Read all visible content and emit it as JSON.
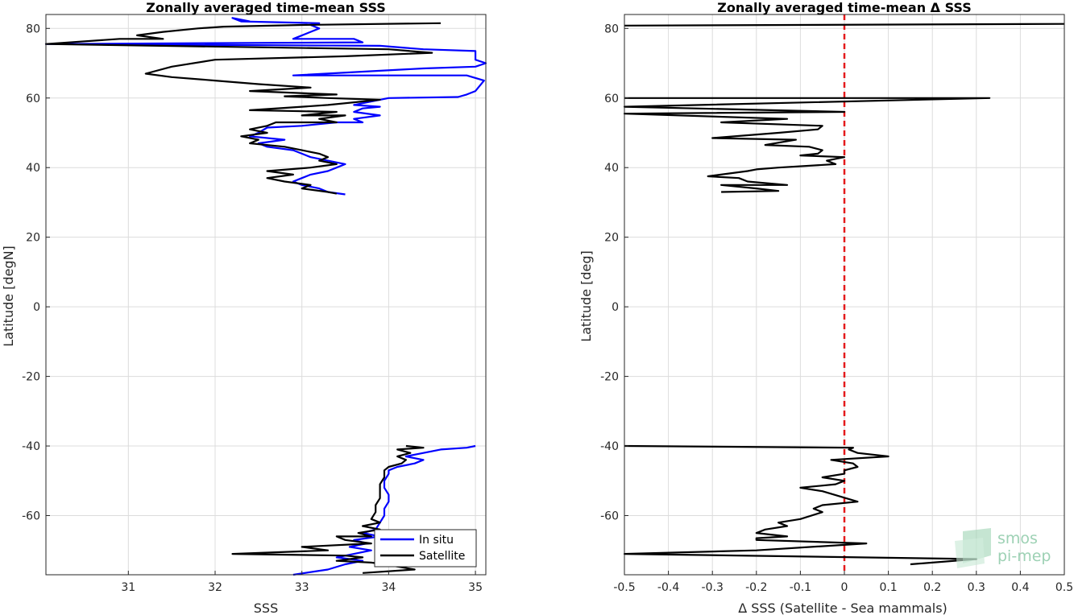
{
  "chart_data": [
    {
      "type": "line",
      "title": "Zonally averaged time-mean SSS",
      "xlabel": "SSS",
      "ylabel": "Latitude [degN]",
      "xlim": [
        30.05,
        35.12
      ],
      "ylim": [
        -77,
        84
      ],
      "xticks": [
        31,
        32,
        33,
        34,
        35
      ],
      "yticks": [
        -60,
        -40,
        -20,
        0,
        20,
        40,
        60,
        80
      ],
      "grid": true,
      "legend_position": "bottom-right",
      "series": [
        {
          "name": "In situ",
          "color": "#0000ff",
          "segments": [
            [
              [
                32.4,
                82
              ],
              [
                32.2,
                83
              ],
              [
                32.3,
                82
              ],
              [
                33.2,
                81.5
              ],
              [
                33.1,
                81
              ],
              [
                33.2,
                80
              ],
              [
                33.1,
                79
              ],
              [
                32.9,
                77
              ],
              [
                33.6,
                77
              ],
              [
                33.7,
                76
              ],
              [
                30.05,
                75.5
              ],
              [
                33.9,
                75
              ],
              [
                34.4,
                74
              ],
              [
                35.0,
                73.5
              ],
              [
                35.0,
                71
              ],
              [
                35.12,
                70
              ],
              [
                35.0,
                69
              ],
              [
                34.4,
                68.5
              ],
              [
                32.9,
                66.5
              ],
              [
                34.9,
                66.5
              ],
              [
                35.1,
                65
              ],
              [
                35.0,
                62
              ],
              [
                34.9,
                61
              ],
              [
                34.8,
                60.3
              ],
              [
                34.0,
                60
              ],
              [
                33.8,
                59
              ],
              [
                33.6,
                58
              ],
              [
                33.9,
                57.5
              ],
              [
                33.7,
                57
              ],
              [
                33.6,
                56
              ],
              [
                33.9,
                55
              ],
              [
                33.6,
                54
              ],
              [
                33.7,
                53
              ],
              [
                33.4,
                53
              ],
              [
                33.0,
                52
              ],
              [
                32.6,
                51.5
              ],
              [
                32.5,
                50
              ],
              [
                32.4,
                49
              ],
              [
                32.8,
                48
              ],
              [
                32.5,
                47
              ],
              [
                32.6,
                46
              ],
              [
                32.9,
                45
              ],
              [
                33.0,
                44
              ],
              [
                33.1,
                43
              ],
              [
                33.3,
                42
              ],
              [
                33.5,
                41
              ],
              [
                33.4,
                40
              ],
              [
                33.3,
                39
              ],
              [
                33.1,
                38
              ],
              [
                33.0,
                37
              ],
              [
                32.9,
                36
              ],
              [
                33.0,
                35
              ],
              [
                33.2,
                34
              ],
              [
                33.3,
                33
              ],
              [
                33.5,
                32.3
              ]
            ],
            [
              [
                35.0,
                -40
              ],
              [
                34.9,
                -40.5
              ],
              [
                34.6,
                -41
              ],
              [
                34.4,
                -42
              ],
              [
                34.2,
                -43
              ],
              [
                34.4,
                -44
              ],
              [
                34.3,
                -45
              ],
              [
                34.1,
                -46
              ],
              [
                34.0,
                -47
              ],
              [
                34.0,
                -48
              ],
              [
                33.95,
                -50
              ],
              [
                33.95,
                -52
              ],
              [
                34.0,
                -54
              ],
              [
                34.0,
                -56
              ],
              [
                33.95,
                -58
              ],
              [
                33.95,
                -60
              ],
              [
                33.9,
                -62
              ],
              [
                33.85,
                -64
              ],
              [
                33.7,
                -65
              ],
              [
                33.9,
                -66
              ],
              [
                33.6,
                -67
              ],
              [
                33.75,
                -68
              ],
              [
                33.55,
                -69
              ],
              [
                33.8,
                -70
              ],
              [
                33.6,
                -71
              ],
              [
                33.4,
                -72
              ],
              [
                33.7,
                -73
              ],
              [
                33.5,
                -74
              ],
              [
                33.3,
                -75.5
              ],
              [
                32.9,
                -77
              ]
            ]
          ]
        },
        {
          "name": "Satellite",
          "color": "#000000",
          "segments": [
            [
              [
                34.6,
                81.5
              ],
              [
                33.0,
                81
              ],
              [
                32.1,
                80.5
              ],
              [
                31.8,
                80
              ],
              [
                31.4,
                79
              ],
              [
                31.1,
                78
              ],
              [
                31.4,
                77
              ],
              [
                30.9,
                77
              ],
              [
                30.05,
                75.5
              ],
              [
                34.0,
                74
              ],
              [
                34.5,
                73
              ],
              [
                33.5,
                72
              ],
              [
                32.0,
                71
              ],
              [
                31.5,
                69
              ],
              [
                31.2,
                67
              ],
              [
                31.5,
                66
              ],
              [
                32.0,
                65
              ],
              [
                32.5,
                64
              ],
              [
                33.1,
                63
              ],
              [
                32.4,
                62
              ],
              [
                33.4,
                61
              ],
              [
                32.8,
                60.5
              ],
              [
                33.3,
                60
              ],
              [
                33.9,
                59.5
              ],
              [
                33.3,
                58
              ],
              [
                33.0,
                57.5
              ],
              [
                32.4,
                56.5
              ],
              [
                33.4,
                56
              ],
              [
                33.0,
                55
              ],
              [
                33.5,
                55
              ],
              [
                33.2,
                54
              ],
              [
                33.4,
                53
              ],
              [
                32.7,
                53
              ],
              [
                32.6,
                52
              ],
              [
                32.4,
                51
              ],
              [
                32.6,
                50
              ],
              [
                32.3,
                49
              ],
              [
                32.5,
                48
              ],
              [
                32.4,
                47
              ],
              [
                32.8,
                46
              ],
              [
                33.0,
                45
              ],
              [
                33.2,
                44
              ],
              [
                33.3,
                43
              ],
              [
                33.2,
                42
              ],
              [
                33.4,
                41
              ],
              [
                33.1,
                40
              ],
              [
                32.6,
                39
              ],
              [
                32.9,
                38
              ],
              [
                32.6,
                37
              ],
              [
                32.8,
                36
              ],
              [
                33.1,
                35
              ],
              [
                33.0,
                34
              ],
              [
                33.3,
                33
              ],
              [
                33.4,
                32.5
              ]
            ],
            [
              [
                34.2,
                -40
              ],
              [
                34.4,
                -40.5
              ],
              [
                34.1,
                -41
              ],
              [
                34.25,
                -42
              ],
              [
                34.1,
                -43
              ],
              [
                34.2,
                -44
              ],
              [
                34.15,
                -45
              ],
              [
                34.0,
                -46
              ],
              [
                33.95,
                -47
              ],
              [
                33.95,
                -49
              ],
              [
                33.9,
                -51
              ],
              [
                33.9,
                -53
              ],
              [
                33.9,
                -55
              ],
              [
                33.85,
                -57
              ],
              [
                33.85,
                -59
              ],
              [
                33.8,
                -61
              ],
              [
                33.9,
                -62
              ],
              [
                33.7,
                -63
              ],
              [
                33.9,
                -64
              ],
              [
                33.65,
                -65
              ],
              [
                33.8,
                -66
              ],
              [
                33.4,
                -66
              ],
              [
                33.5,
                -67
              ],
              [
                33.8,
                -68
              ],
              [
                33.0,
                -69
              ],
              [
                33.3,
                -70
              ],
              [
                32.2,
                -71
              ],
              [
                33.5,
                -71.5
              ],
              [
                33.7,
                -72
              ],
              [
                33.4,
                -73
              ],
              [
                33.8,
                -73.5
              ],
              [
                33.95,
                -74
              ],
              [
                34.3,
                -75.5
              ],
              [
                33.7,
                -76.5
              ]
            ]
          ]
        }
      ]
    },
    {
      "type": "line",
      "title": "Zonally averaged time-mean Δ SSS",
      "xlabel": "Δ SSS (Satellite - Sea mammals)",
      "ylabel": "Latitude [deg]",
      "xlim": [
        -0.5,
        0.5
      ],
      "ylim": [
        -77,
        84
      ],
      "xticks": [
        -0.5,
        -0.4,
        -0.3,
        -0.2,
        -0.1,
        0,
        0.1,
        0.2,
        0.3,
        0.4,
        0.5
      ],
      "yticks": [
        -60,
        -40,
        -20,
        0,
        20,
        40,
        60,
        80
      ],
      "grid": true,
      "reference_line": {
        "x": 0,
        "color": "#e41a1c",
        "style": "dashed"
      },
      "series": [
        {
          "color": "#000000",
          "segments": [
            [
              [
                -0.5,
                80.8
              ],
              [
                0.5,
                81.3
              ]
            ],
            [
              [
                -0.5,
                60
              ],
              [
                0.33,
                60
              ],
              [
                -0.5,
                57.5
              ],
              [
                0.0,
                56
              ],
              [
                -0.5,
                55.5
              ],
              [
                -0.13,
                54
              ],
              [
                -0.28,
                53
              ],
              [
                -0.05,
                52
              ],
              [
                -0.06,
                51
              ],
              [
                -0.15,
                50
              ],
              [
                -0.3,
                48.5
              ],
              [
                -0.11,
                48
              ],
              [
                -0.18,
                46.5
              ],
              [
                -0.08,
                46
              ],
              [
                -0.05,
                45
              ],
              [
                -0.06,
                44
              ],
              [
                -0.1,
                43.5
              ],
              [
                0.0,
                43
              ],
              [
                -0.04,
                42
              ],
              [
                -0.02,
                41
              ],
              [
                -0.15,
                40
              ],
              [
                -0.2,
                39.5
              ],
              [
                -0.22,
                39
              ],
              [
                -0.31,
                37.5
              ],
              [
                -0.24,
                37
              ],
              [
                -0.22,
                36
              ],
              [
                -0.13,
                35
              ],
              [
                -0.28,
                35
              ],
              [
                -0.2,
                34
              ],
              [
                -0.15,
                33.3
              ],
              [
                -0.28,
                33
              ]
            ],
            [
              [
                -0.5,
                -40
              ],
              [
                0.02,
                -40.5
              ],
              [
                0.01,
                -41
              ],
              [
                0.03,
                -42
              ],
              [
                0.1,
                -43
              ],
              [
                -0.03,
                -44
              ],
              [
                0.02,
                -45
              ],
              [
                0.03,
                -46
              ],
              [
                0.0,
                -47
              ],
              [
                0.0,
                -48
              ],
              [
                -0.05,
                -49
              ],
              [
                0.0,
                -50
              ],
              [
                -0.02,
                -51
              ],
              [
                -0.1,
                -52
              ],
              [
                -0.05,
                -53
              ],
              [
                0.03,
                -56
              ],
              [
                -0.05,
                -57
              ],
              [
                -0.07,
                -58
              ],
              [
                -0.05,
                -59
              ],
              [
                -0.1,
                -61
              ],
              [
                -0.15,
                -62
              ],
              [
                -0.13,
                -63
              ],
              [
                -0.18,
                -64
              ],
              [
                -0.2,
                -65
              ],
              [
                -0.13,
                -66
              ],
              [
                -0.2,
                -66.5
              ],
              [
                -0.2,
                -67
              ],
              [
                0.05,
                -68
              ],
              [
                -0.2,
                -70
              ],
              [
                -0.5,
                -71
              ],
              [
                0.3,
                -72.5
              ],
              [
                0.15,
                -74
              ]
            ]
          ]
        }
      ]
    }
  ],
  "logo": {
    "line1": "smos",
    "line2": "pi-mep"
  }
}
